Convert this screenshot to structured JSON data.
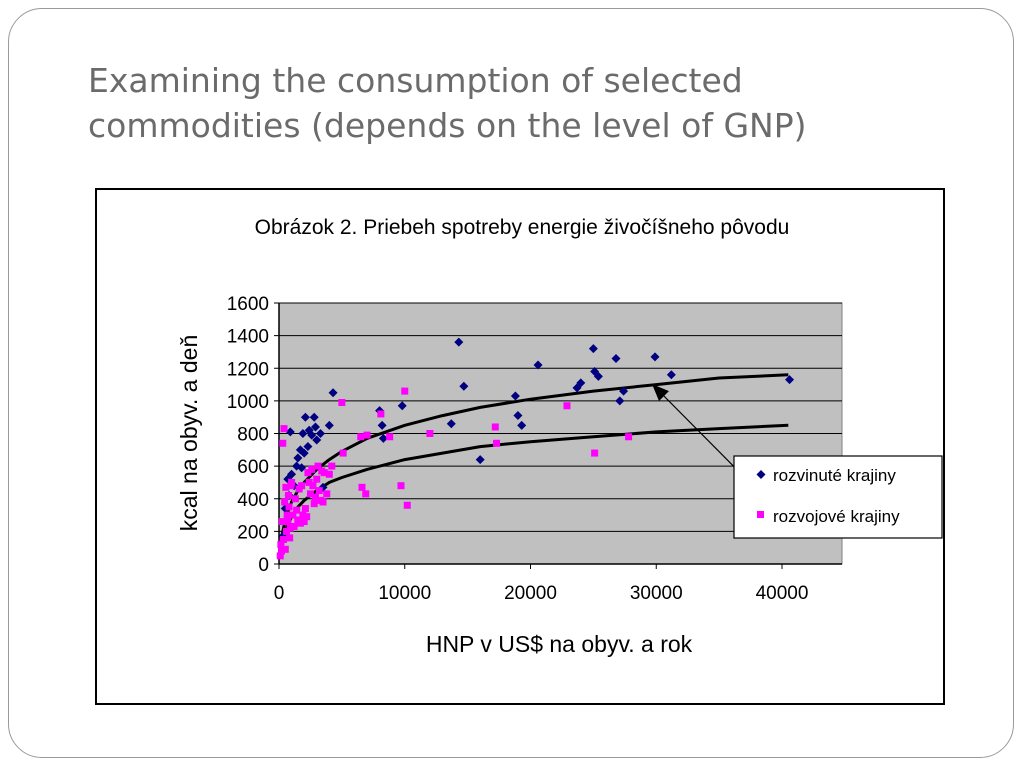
{
  "slide": {
    "title_line1": "Examining the consumption of selected",
    "title_line2": "commodities (depends on the level of GNP)"
  },
  "chart_data": {
    "type": "scatter",
    "title": "Obrázok 2. Priebeh spotreby energie živočíšneho pôvodu",
    "xlabel": "HNP v US$ na obyv. a rok",
    "ylabel": "kcal na obyv.  a deň",
    "xlim": [
      0,
      45000
    ],
    "ylim": [
      0,
      1600
    ],
    "x_ticks": [
      0,
      10000,
      20000,
      30000,
      40000
    ],
    "y_ticks": [
      0,
      200,
      400,
      600,
      800,
      1000,
      1200,
      1400,
      1600
    ],
    "grid": "horizontal",
    "plot_background": "#c0c0c0",
    "legend_position": "bottom-right",
    "series": [
      {
        "name": "rozvinuté krajiny",
        "marker": "diamond",
        "color": "#000080",
        "points": [
          [
            300,
            170
          ],
          [
            500,
            340
          ],
          [
            700,
            520
          ],
          [
            800,
            420
          ],
          [
            900,
            810
          ],
          [
            1000,
            550
          ],
          [
            1200,
            480
          ],
          [
            1400,
            600
          ],
          [
            1500,
            650
          ],
          [
            1700,
            700
          ],
          [
            1800,
            590
          ],
          [
            1900,
            800
          ],
          [
            2000,
            680
          ],
          [
            2100,
            900
          ],
          [
            2300,
            720
          ],
          [
            2400,
            820
          ],
          [
            2600,
            790
          ],
          [
            2800,
            900
          ],
          [
            2900,
            840
          ],
          [
            3000,
            760
          ],
          [
            3300,
            800
          ],
          [
            3500,
            470
          ],
          [
            4000,
            850
          ],
          [
            4300,
            1050
          ],
          [
            8000,
            940
          ],
          [
            8200,
            850
          ],
          [
            8300,
            770
          ],
          [
            9800,
            970
          ],
          [
            13700,
            860
          ],
          [
            14300,
            1360
          ],
          [
            14700,
            1090
          ],
          [
            16000,
            640
          ],
          [
            18800,
            1030
          ],
          [
            19000,
            910
          ],
          [
            19300,
            850
          ],
          [
            20600,
            1220
          ],
          [
            23700,
            1080
          ],
          [
            24000,
            1110
          ],
          [
            25000,
            1320
          ],
          [
            25100,
            1180
          ],
          [
            25400,
            1150
          ],
          [
            26800,
            1260
          ],
          [
            27100,
            1000
          ],
          [
            27400,
            1060
          ],
          [
            29900,
            1270
          ],
          [
            31200,
            1160
          ],
          [
            40600,
            1130
          ]
        ]
      },
      {
        "name": "rozvojové krajiny",
        "marker": "square",
        "color": "#ff00ff",
        "points": [
          [
            100,
            50
          ],
          [
            150,
            120
          ],
          [
            200,
            80
          ],
          [
            250,
            260
          ],
          [
            300,
            740
          ],
          [
            350,
            150
          ],
          [
            400,
            830
          ],
          [
            450,
            380
          ],
          [
            500,
            90
          ],
          [
            550,
            470
          ],
          [
            600,
            200
          ],
          [
            650,
            300
          ],
          [
            700,
            260
          ],
          [
            750,
            420
          ],
          [
            800,
            350
          ],
          [
            850,
            160
          ],
          [
            900,
            220
          ],
          [
            950,
            480
          ],
          [
            1000,
            500
          ],
          [
            1100,
            300
          ],
          [
            1200,
            230
          ],
          [
            1300,
            400
          ],
          [
            1400,
            330
          ],
          [
            1500,
            270
          ],
          [
            1600,
            460
          ],
          [
            1700,
            250
          ],
          [
            1800,
            480
          ],
          [
            1900,
            300
          ],
          [
            2000,
            260
          ],
          [
            2100,
            340
          ],
          [
            2200,
            290
          ],
          [
            2300,
            560
          ],
          [
            2400,
            500
          ],
          [
            2500,
            430
          ],
          [
            2600,
            580
          ],
          [
            2700,
            480
          ],
          [
            2800,
            370
          ],
          [
            2900,
            410
          ],
          [
            3000,
            520
          ],
          [
            3100,
            600
          ],
          [
            3200,
            450
          ],
          [
            3300,
            390
          ],
          [
            3400,
            570
          ],
          [
            3500,
            380
          ],
          [
            3600,
            560
          ],
          [
            3800,
            430
          ],
          [
            4000,
            550
          ],
          [
            4200,
            600
          ],
          [
            5000,
            990
          ],
          [
            5100,
            680
          ],
          [
            6500,
            780
          ],
          [
            6600,
            470
          ],
          [
            6900,
            430
          ],
          [
            7000,
            790
          ],
          [
            8100,
            920
          ],
          [
            8800,
            780
          ],
          [
            9700,
            480
          ],
          [
            10000,
            1060
          ],
          [
            10200,
            360
          ],
          [
            12000,
            800
          ],
          [
            17200,
            840
          ],
          [
            17300,
            740
          ],
          [
            22900,
            970
          ],
          [
            25100,
            680
          ],
          [
            27800,
            780
          ]
        ]
      }
    ],
    "trendlines": [
      {
        "series": "rozvinuté krajiny",
        "points": [
          [
            100,
            60
          ],
          [
            200,
            150
          ],
          [
            300,
            200
          ],
          [
            500,
            270
          ],
          [
            700,
            320
          ],
          [
            1000,
            380
          ],
          [
            1500,
            450
          ],
          [
            2000,
            500
          ],
          [
            3000,
            580
          ],
          [
            4000,
            640
          ],
          [
            5000,
            690
          ],
          [
            7000,
            770
          ],
          [
            10000,
            850
          ],
          [
            13000,
            910
          ],
          [
            16000,
            960
          ],
          [
            20000,
            1010
          ],
          [
            25000,
            1060
          ],
          [
            30000,
            1100
          ],
          [
            35000,
            1140
          ],
          [
            40500,
            1160
          ]
        ]
      },
      {
        "series": "rozvojové krajiny",
        "points": [
          [
            100,
            50
          ],
          [
            200,
            110
          ],
          [
            300,
            150
          ],
          [
            500,
            200
          ],
          [
            700,
            240
          ],
          [
            1000,
            290
          ],
          [
            1500,
            350
          ],
          [
            2000,
            390
          ],
          [
            3000,
            450
          ],
          [
            4000,
            500
          ],
          [
            5000,
            530
          ],
          [
            7000,
            580
          ],
          [
            10000,
            640
          ],
          [
            13000,
            680
          ],
          [
            16000,
            720
          ],
          [
            20000,
            750
          ],
          [
            25000,
            780
          ],
          [
            30000,
            810
          ],
          [
            35000,
            830
          ],
          [
            40500,
            850
          ]
        ]
      }
    ],
    "annotation": {
      "type": "arrow",
      "points_to": [
        28000,
        1100
      ]
    }
  }
}
